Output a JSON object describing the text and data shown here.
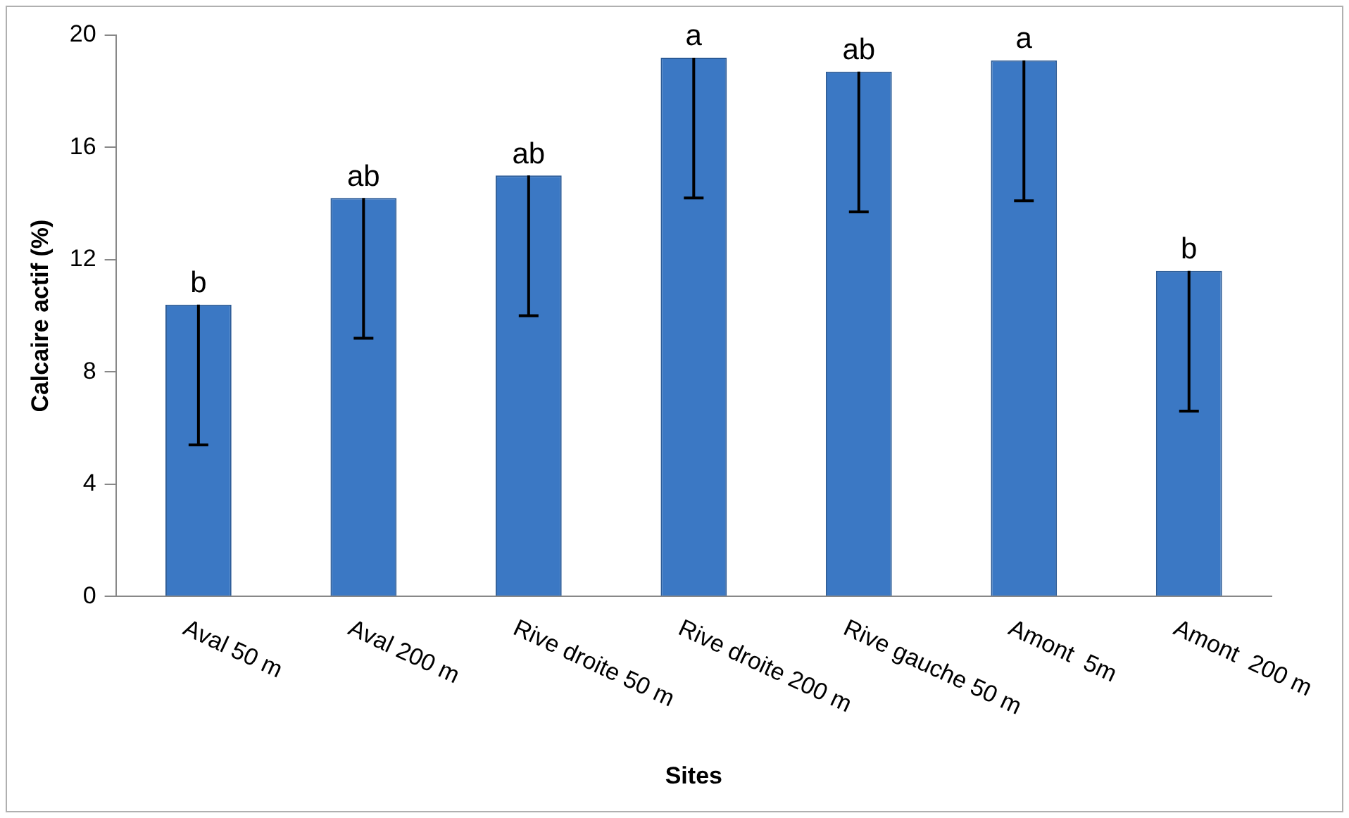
{
  "chart_data": {
    "type": "bar",
    "xlabel": "Sites",
    "ylabel": "Calcaire actif (%)",
    "categories": [
      "Aval 50 m",
      "Aval 200 m",
      "Rive droite 50 m",
      "Rive droite 200 m",
      "Rive gauche 50 m",
      "Amont  5m",
      "Amont  200 m"
    ],
    "values": [
      10.4,
      14.2,
      15.0,
      19.2,
      18.7,
      19.1,
      11.6
    ],
    "errors": [
      [
        5.4,
        10.4
      ],
      [
        9.2,
        14.2
      ],
      [
        10.0,
        15.0
      ],
      [
        14.2,
        19.2
      ],
      [
        13.7,
        18.7
      ],
      [
        14.1,
        19.1
      ],
      [
        6.6,
        11.6
      ]
    ],
    "color": "#3b78c4",
    "ylim": [
      0,
      20
    ],
    "yticks": [
      0,
      4,
      8,
      12,
      16,
      20
    ],
    "grid": false,
    "legend": false,
    "annotations": [
      {
        "text": "b",
        "x": "Aval 50 m",
        "y": 10.4
      },
      {
        "text": "ab",
        "x": "Aval 200 m",
        "y": 14.2
      },
      {
        "text": "ab",
        "x": "Rive droite 50 m",
        "y": 15.0
      },
      {
        "text": "a",
        "x": "Rive droite 200 m",
        "y": 19.2
      },
      {
        "text": "ab",
        "x": "Rive gauche 50 m",
        "y": 18.7
      },
      {
        "text": "a",
        "x": "Amont  5m",
        "y": 19.1
      },
      {
        "text": "b",
        "x": "Amont  200 m",
        "y": 11.6
      }
    ]
  }
}
